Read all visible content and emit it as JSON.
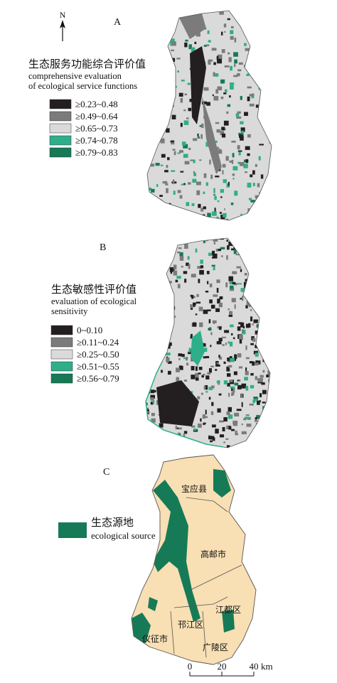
{
  "north_label": "N",
  "panels": [
    {
      "label": "A",
      "legend_title": "生态服务功能综合评价值",
      "legend_subtitle": [
        "comprehensive evaluation",
        "of ecological service functions"
      ],
      "classes": [
        {
          "label": "≥0.23~0.48",
          "color": "#231f20"
        },
        {
          "label": "≥0.49~0.64",
          "color": "#7b7b7b"
        },
        {
          "label": "≥0.65~0.73",
          "color": "#dadada"
        },
        {
          "label": "≥0.74~0.78",
          "color": "#2fae8a"
        },
        {
          "label": "≥0.79~0.83",
          "color": "#157a55"
        }
      ]
    },
    {
      "label": "B",
      "legend_title": "生态敏感性评价值",
      "legend_subtitle": [
        "evaluation of ecological",
        "sensitivity"
      ],
      "classes": [
        {
          "label": "0~0.10",
          "color": "#231f20"
        },
        {
          "label": "≥0.11~0.24",
          "color": "#7b7b7b"
        },
        {
          "label": "≥0.25~0.50",
          "color": "#dadada"
        },
        {
          "label": "≥0.51~0.55",
          "color": "#2fae8a"
        },
        {
          "label": "≥0.56~0.79",
          "color": "#157a55"
        }
      ]
    },
    {
      "label": "C",
      "legend_title": "生态源地",
      "legend_subtitle": [
        "ecological source"
      ],
      "source_color": "#177a57",
      "base_color": "#f8dfb4",
      "places": [
        "宝应县",
        "高邮市",
        "江都区",
        "邗江区",
        "仪征市",
        "广陵区"
      ]
    }
  ],
  "scale_bar": {
    "ticks": [
      0,
      20,
      40
    ],
    "unit": "km"
  }
}
